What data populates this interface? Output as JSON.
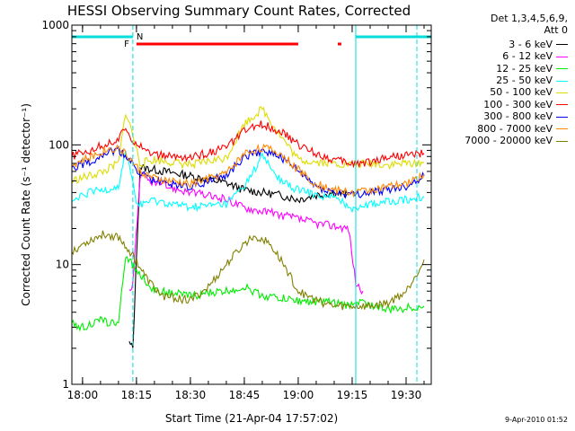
{
  "chart_data": {
    "type": "line",
    "title": "HESSI Observing Summary Count Rates, Corrected",
    "xlabel": "Start Time (21-Apr-04 17:57:02)",
    "ylabel": "Corrected Count Rate (s⁻¹ detector⁻¹)",
    "y_scale": "log",
    "ylim": [
      1,
      1000
    ],
    "xlim": [
      "17:57:02",
      "19:37:00"
    ],
    "x_ticks": [
      "18:00",
      "18:15",
      "18:30",
      "18:45",
      "19:00",
      "19:15",
      "19:30"
    ],
    "y_ticks": [
      "1",
      "10",
      "100",
      "1000"
    ],
    "legend_header": [
      "Det 1,3,4,5,6,9,",
      "Att 0"
    ],
    "legend_position": "right",
    "series": [
      {
        "name": "3 - 6 keV",
        "color": "#000000",
        "points": [
          [
            "18:13",
            2.2
          ],
          [
            "18:14",
            2.0
          ],
          [
            "18:16",
            65
          ],
          [
            "18:20",
            62
          ],
          [
            "18:30",
            55
          ],
          [
            "18:40",
            48
          ],
          [
            "18:45",
            42
          ],
          [
            "18:50",
            40
          ],
          [
            "18:55",
            38
          ],
          [
            "19:00",
            35
          ],
          [
            "19:05",
            38
          ],
          [
            "19:10",
            40
          ],
          [
            "19:14",
            38
          ]
        ]
      },
      {
        "name": "6 - 12 keV",
        "color": "#ff00ff",
        "points": [
          [
            "18:13",
            6
          ],
          [
            "18:14",
            7
          ],
          [
            "18:16",
            55
          ],
          [
            "18:20",
            48
          ],
          [
            "18:30",
            40
          ],
          [
            "18:40",
            35
          ],
          [
            "18:45",
            30
          ],
          [
            "18:50",
            28
          ],
          [
            "18:55",
            26
          ],
          [
            "19:00",
            24
          ],
          [
            "19:05",
            22
          ],
          [
            "19:10",
            21
          ],
          [
            "19:14",
            20
          ],
          [
            "19:16",
            7
          ],
          [
            "19:18",
            6
          ]
        ]
      },
      {
        "name": "12 - 25 keV",
        "color": "#00ee00",
        "points": [
          [
            "17:57",
            3.2
          ],
          [
            "18:00",
            3.0
          ],
          [
            "18:05",
            3.4
          ],
          [
            "18:10",
            3.2
          ],
          [
            "18:12",
            12
          ],
          [
            "18:15",
            9
          ],
          [
            "18:20",
            6
          ],
          [
            "18:30",
            5.5
          ],
          [
            "18:40",
            6
          ],
          [
            "18:45",
            6.5
          ],
          [
            "18:50",
            5.5
          ],
          [
            "19:00",
            5
          ],
          [
            "19:10",
            4.8
          ],
          [
            "19:14",
            4.5
          ],
          [
            "19:16",
            5
          ],
          [
            "19:25",
            4.2
          ],
          [
            "19:35",
            4.5
          ]
        ]
      },
      {
        "name": "25 - 50 keV",
        "color": "#00ffff",
        "points": [
          [
            "17:57",
            33
          ],
          [
            "18:02",
            40
          ],
          [
            "18:06",
            42
          ],
          [
            "18:10",
            45
          ],
          [
            "18:12",
            85
          ],
          [
            "18:13",
            70
          ],
          [
            "18:15",
            32
          ],
          [
            "18:20",
            34
          ],
          [
            "18:30",
            30
          ],
          [
            "18:40",
            32
          ],
          [
            "18:45",
            45
          ],
          [
            "18:50",
            80
          ],
          [
            "18:55",
            50
          ],
          [
            "19:00",
            42
          ],
          [
            "19:05",
            38
          ],
          [
            "19:10",
            36
          ],
          [
            "19:15",
            30
          ],
          [
            "19:20",
            32
          ],
          [
            "19:30",
            35
          ],
          [
            "19:35",
            37
          ]
        ]
      },
      {
        "name": "50 - 100 keV",
        "color": "#dddd00",
        "points": [
          [
            "17:57",
            50
          ],
          [
            "18:02",
            55
          ],
          [
            "18:06",
            60
          ],
          [
            "18:10",
            70
          ],
          [
            "18:12",
            190
          ],
          [
            "18:14",
            120
          ],
          [
            "18:16",
            70
          ],
          [
            "18:20",
            75
          ],
          [
            "18:30",
            68
          ],
          [
            "18:40",
            78
          ],
          [
            "18:45",
            150
          ],
          [
            "18:50",
            200
          ],
          [
            "18:55",
            120
          ],
          [
            "19:00",
            75
          ],
          [
            "19:05",
            72
          ],
          [
            "19:10",
            70
          ],
          [
            "19:15",
            68
          ],
          [
            "19:20",
            70
          ],
          [
            "19:25",
            68
          ],
          [
            "19:35",
            72
          ]
        ]
      },
      {
        "name": "100 - 300 keV",
        "color": "#ff0000",
        "points": [
          [
            "17:57",
            80
          ],
          [
            "18:02",
            90
          ],
          [
            "18:06",
            100
          ],
          [
            "18:10",
            110
          ],
          [
            "18:12",
            140
          ],
          [
            "18:14",
            110
          ],
          [
            "18:20",
            82
          ],
          [
            "18:30",
            78
          ],
          [
            "18:40",
            95
          ],
          [
            "18:45",
            130
          ],
          [
            "18:50",
            150
          ],
          [
            "18:55",
            130
          ],
          [
            "19:00",
            100
          ],
          [
            "19:05",
            85
          ],
          [
            "19:10",
            75
          ],
          [
            "19:15",
            70
          ],
          [
            "19:20",
            72
          ],
          [
            "19:25",
            80
          ],
          [
            "19:35",
            85
          ]
        ]
      },
      {
        "name": "300 - 800 keV",
        "color": "#0000ff",
        "points": [
          [
            "17:57",
            65
          ],
          [
            "18:02",
            72
          ],
          [
            "18:06",
            85
          ],
          [
            "18:10",
            90
          ],
          [
            "18:13",
            75
          ],
          [
            "18:16",
            58
          ],
          [
            "18:20",
            50
          ],
          [
            "18:30",
            45
          ],
          [
            "18:40",
            55
          ],
          [
            "18:45",
            80
          ],
          [
            "18:50",
            90
          ],
          [
            "18:55",
            80
          ],
          [
            "19:00",
            60
          ],
          [
            "19:05",
            45
          ],
          [
            "19:10",
            40
          ],
          [
            "19:15",
            38
          ],
          [
            "19:20",
            40
          ],
          [
            "19:30",
            45
          ],
          [
            "19:35",
            55
          ]
        ]
      },
      {
        "name": "800 - 7000 keV",
        "color": "#ff8800",
        "points": [
          [
            "17:57",
            68
          ],
          [
            "18:02",
            78
          ],
          [
            "18:06",
            90
          ],
          [
            "18:10",
            95
          ],
          [
            "18:13",
            78
          ],
          [
            "18:16",
            60
          ],
          [
            "18:20",
            52
          ],
          [
            "18:30",
            47
          ],
          [
            "18:40",
            58
          ],
          [
            "18:45",
            85
          ],
          [
            "18:50",
            95
          ],
          [
            "18:55",
            85
          ],
          [
            "19:00",
            62
          ],
          [
            "19:05",
            47
          ],
          [
            "19:10",
            42
          ],
          [
            "19:15",
            40
          ],
          [
            "19:20",
            42
          ],
          [
            "19:30",
            47
          ],
          [
            "19:35",
            57
          ]
        ]
      },
      {
        "name": "7000 - 20000 keV",
        "color": "#808000",
        "points": [
          [
            "17:57",
            13
          ],
          [
            "18:02",
            16
          ],
          [
            "18:06",
            18
          ],
          [
            "18:10",
            17
          ],
          [
            "18:14",
            12
          ],
          [
            "18:18",
            7.5
          ],
          [
            "18:22",
            5.5
          ],
          [
            "18:30",
            5
          ],
          [
            "18:35",
            6.5
          ],
          [
            "18:40",
            10
          ],
          [
            "18:45",
            15
          ],
          [
            "18:48",
            17.5
          ],
          [
            "18:52",
            15
          ],
          [
            "18:56",
            10
          ],
          [
            "19:00",
            6
          ],
          [
            "19:05",
            5
          ],
          [
            "19:10",
            4.5
          ],
          [
            "19:15",
            4.5
          ],
          [
            "19:20",
            4.5
          ],
          [
            "19:25",
            4.8
          ],
          [
            "19:30",
            6
          ],
          [
            "19:35",
            11
          ]
        ]
      }
    ],
    "annotations": [
      {
        "label": "F",
        "color": "#ff0000"
      },
      {
        "label": "N",
        "color": "#00cccc"
      }
    ],
    "flare_bar": [
      [
        "18:15",
        "19:00"
      ],
      [
        "19:11",
        "19:12"
      ]
    ],
    "night_bar": [
      [
        "17:57",
        "18:14"
      ],
      [
        "19:16",
        "19:37"
      ]
    ],
    "vlines": [
      "18:14",
      "19:16",
      "19:33"
    ],
    "grid": false
  },
  "footer": {
    "timestamp": "9-Apr-2010 01:52"
  }
}
